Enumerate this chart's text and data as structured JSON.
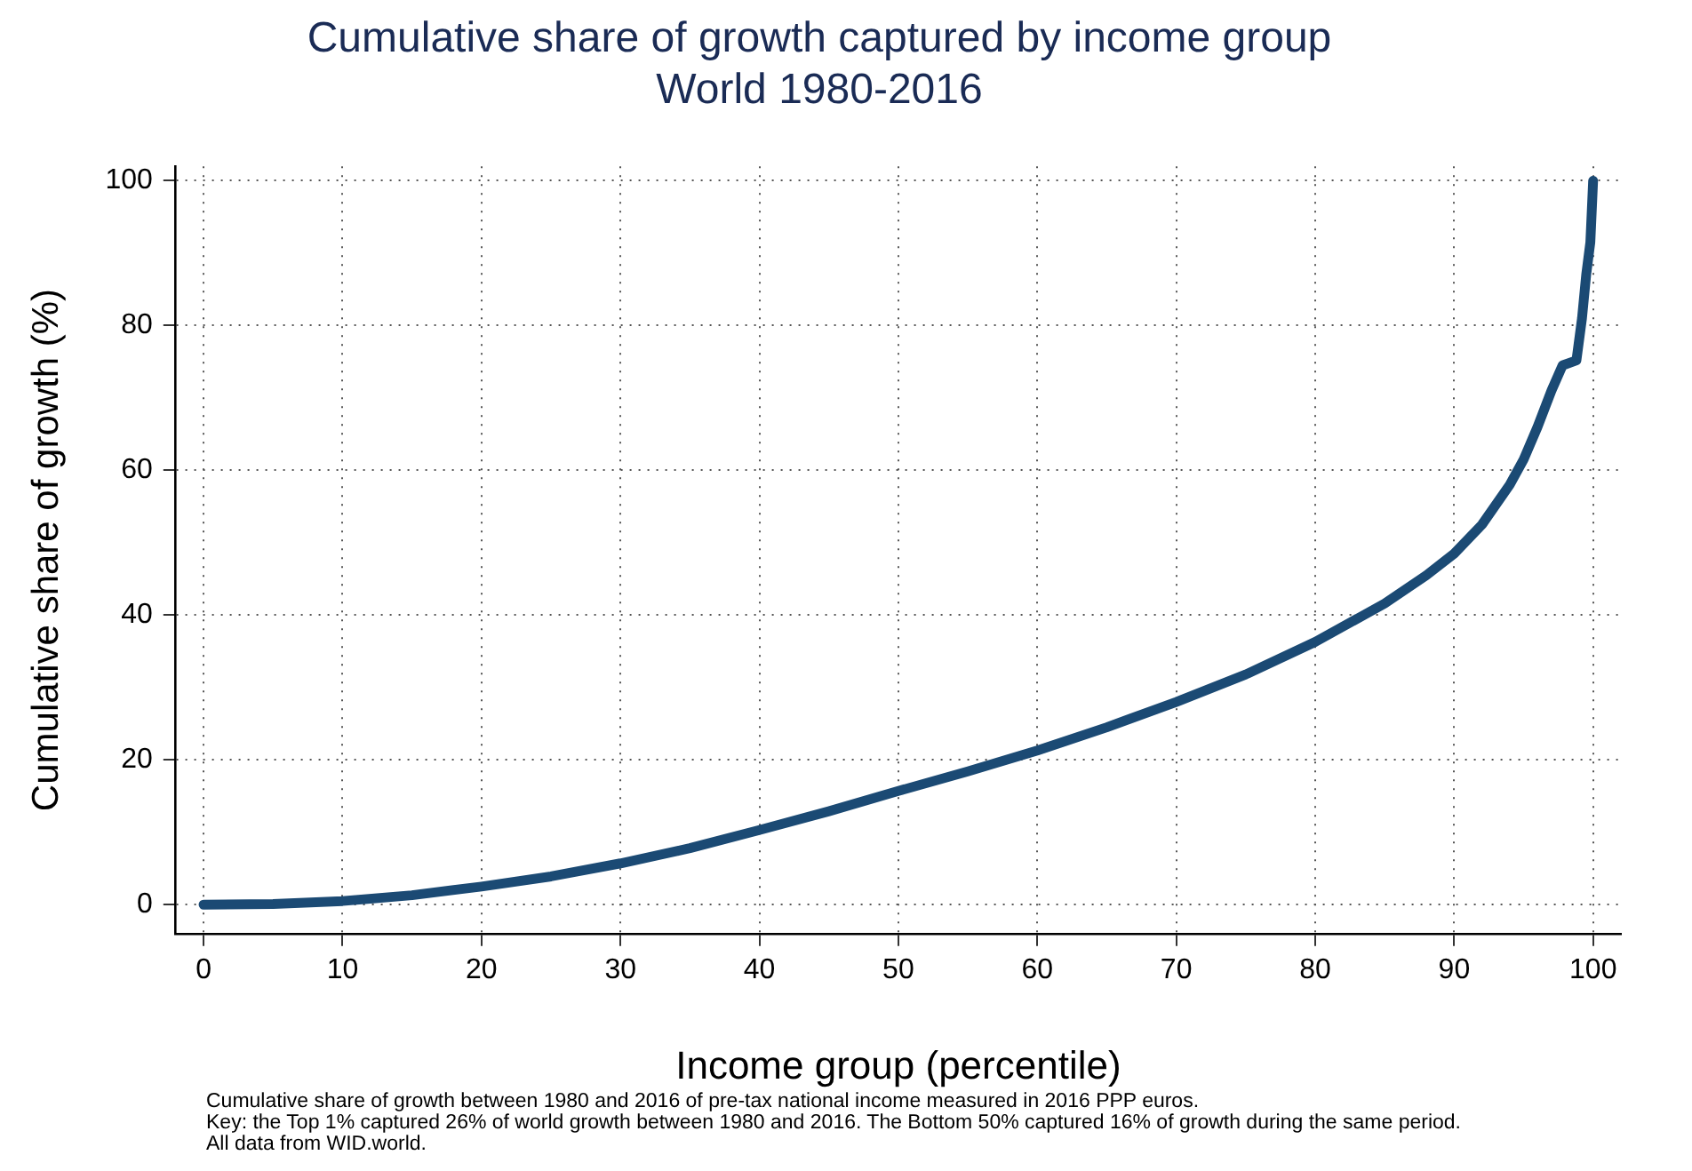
{
  "chart_data": {
    "type": "line",
    "title": "Cumulative share of growth captured by income group",
    "subtitle": "World 1980-2016",
    "xlabel": "Income group (percentile)",
    "ylabel": "Cumulative share of growth (%)",
    "x": [
      0,
      5,
      10,
      15,
      20,
      25,
      30,
      35,
      40,
      45,
      50,
      55,
      60,
      65,
      70,
      75,
      80,
      85,
      88,
      90,
      92,
      94,
      95,
      96,
      97,
      97.8,
      98.8,
      99.2,
      99.5,
      99.8,
      100
    ],
    "series": [
      {
        "color": "#1b4a74",
        "values": [
          0,
          0.1,
          0.5,
          1.3,
          2.5,
          3.9,
          5.7,
          7.8,
          10.3,
          12.9,
          15.7,
          18.4,
          21.3,
          24.5,
          28.0,
          31.8,
          36.3,
          41.6,
          45.5,
          48.5,
          52.5,
          58,
          61.5,
          66,
          71,
          74.5,
          75.2,
          81,
          87,
          91.5,
          100
        ]
      }
    ],
    "xlim": [
      -2,
      102
    ],
    "xticks": [
      0,
      10,
      20,
      30,
      40,
      50,
      60,
      70,
      80,
      90,
      100
    ],
    "ylim": [
      -4,
      102
    ],
    "yticks": [
      0,
      20,
      40,
      60,
      80,
      100
    ],
    "grid": true,
    "legend": false,
    "marker": "none",
    "line_style": "solid",
    "annotations": [
      "Cumulative share of growth between 1980 and 2016 of pre-tax national income measured in 2016 PPP euros.",
      "Key: the Top 1% captured 26% of world growth between 1980 and 2016. The Bottom 50% captured 16% of growth during the same period.",
      "All data from WID.world."
    ]
  }
}
